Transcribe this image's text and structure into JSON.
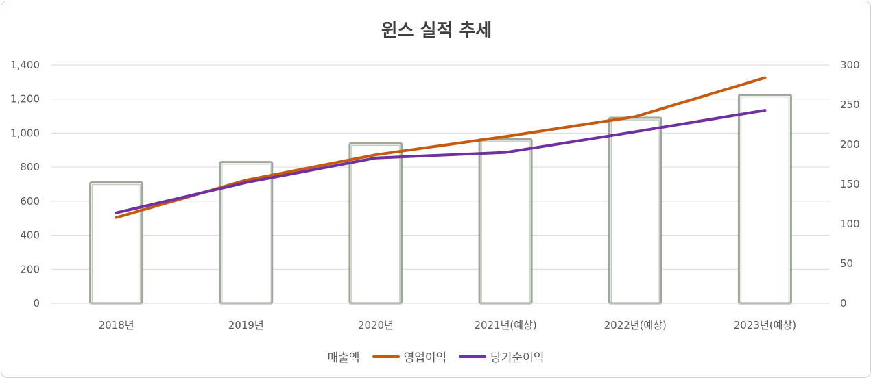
{
  "chart_data": {
    "type": "bar+line",
    "title": "윈스 실적 추세",
    "categories": [
      "2018년",
      "2019년",
      "2020년",
      "2021년(예상)",
      "2022년(예상)",
      "2023년(예상)"
    ],
    "series": [
      {
        "name": "매출액",
        "kind": "bar",
        "axis": "left",
        "color": "#4f5f46",
        "values": [
          710,
          830,
          940,
          965,
          1090,
          1225
        ]
      },
      {
        "name": "영업이익",
        "kind": "line",
        "axis": "right",
        "color": "#c55a11",
        "values": [
          108,
          155,
          187,
          210,
          235,
          284
        ]
      },
      {
        "name": "당기순이익",
        "kind": "line",
        "axis": "right",
        "color": "#7030a0",
        "values": [
          114,
          152,
          183,
          190,
          216,
          243
        ]
      }
    ],
    "ylim_left": [
      0,
      1400
    ],
    "ylim_right": [
      0,
      300
    ],
    "yticks_left": [
      "0",
      "200",
      "400",
      "600",
      "800",
      "1,000",
      "1,200",
      "1,400"
    ],
    "yticks_right": [
      "0",
      "50",
      "100",
      "150",
      "200",
      "250",
      "300"
    ],
    "grid": true,
    "legend": "bottom"
  }
}
